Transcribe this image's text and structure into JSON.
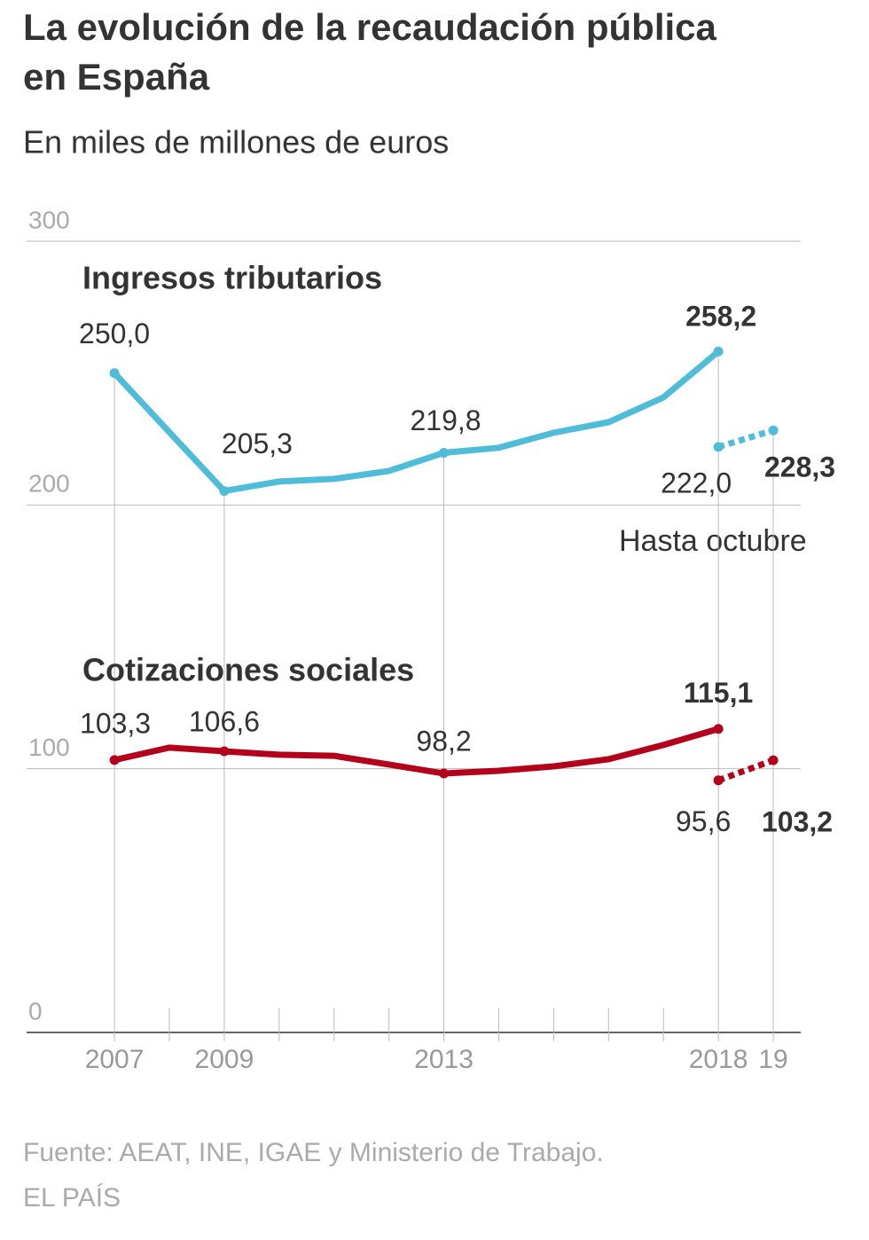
{
  "chart_data": {
    "type": "line",
    "title": "La evolución de la recaudación pública en España",
    "subtitle": "En miles de millones de euros",
    "x": [
      2007,
      2008,
      2009,
      2010,
      2011,
      2012,
      2013,
      2014,
      2015,
      2016,
      2017,
      2018,
      2019
    ],
    "series": [
      {
        "name": "Ingresos tributarios",
        "color": "#4fbcd8",
        "values": [
          250.0,
          227.6,
          205.3,
          208.9,
          209.9,
          212.9,
          219.8,
          221.7,
          227.4,
          231.4,
          240.8,
          258.2,
          null
        ],
        "value_labels": [
          "250,0",
          null,
          "205,3",
          null,
          null,
          null,
          "219,8",
          null,
          null,
          null,
          null,
          "258,2",
          null
        ]
      },
      {
        "color": "#4fbcd8",
        "dashed": true,
        "values": [
          null,
          null,
          null,
          null,
          null,
          null,
          null,
          null,
          null,
          null,
          null,
          222.0,
          228.3
        ],
        "value_labels": [
          null,
          null,
          null,
          null,
          null,
          null,
          null,
          null,
          null,
          null,
          null,
          "222,0",
          "228,3"
        ]
      },
      {
        "name": "Cotizaciones sociales",
        "color": "#b3001b",
        "values": [
          103.3,
          108.0,
          106.6,
          105.3,
          104.9,
          101.6,
          98.2,
          99.2,
          100.9,
          103.6,
          109.0,
          115.1,
          null
        ],
        "value_labels": [
          "103,3",
          null,
          "106,6",
          null,
          null,
          null,
          "98,2",
          null,
          null,
          null,
          null,
          "115,1",
          null
        ]
      },
      {
        "color": "#b3001b",
        "dashed": true,
        "values": [
          null,
          null,
          null,
          null,
          null,
          null,
          null,
          null,
          null,
          null,
          null,
          95.6,
          103.2
        ],
        "value_labels": [
          null,
          null,
          null,
          null,
          null,
          null,
          null,
          null,
          null,
          null,
          null,
          "95,6",
          "103,2"
        ]
      }
    ],
    "annotation": "Hasta octubre",
    "xlim": [
      2005.4,
      2019.5
    ],
    "xticks": [
      2007,
      2009,
      2013,
      2018,
      {
        "value": 2019,
        "label": "19"
      }
    ],
    "xticks_minor": [
      2008,
      2010,
      2011,
      2012,
      2014,
      2015,
      2016,
      2017
    ],
    "ylim": [
      0,
      300
    ],
    "yticks": [
      0,
      100,
      200,
      300
    ],
    "grid": true,
    "source": "Fuente: AEAT, INE, IGAE y Ministerio de Trabajo.",
    "credit": "EL PAÍS"
  }
}
